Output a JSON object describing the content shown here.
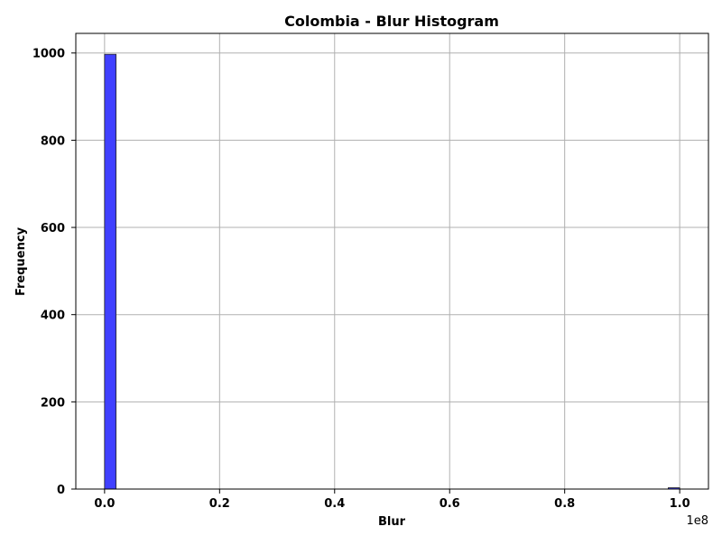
{
  "chart_data": {
    "type": "bar",
    "title": "Colombia - Blur Histogram",
    "xlabel": "Blur",
    "ylabel": "Frequency",
    "x_offset_label": "1e8",
    "xlim": [
      -0.05,
      1.05
    ],
    "ylim": [
      0,
      1045
    ],
    "x_ticks": [
      0.0,
      0.2,
      0.4,
      0.6,
      0.8,
      1.0
    ],
    "x_tick_labels": [
      "0.0",
      "0.2",
      "0.4",
      "0.6",
      "0.8",
      "1.0"
    ],
    "y_ticks": [
      0,
      200,
      400,
      600,
      800,
      1000
    ],
    "y_tick_labels": [
      "0",
      "200",
      "400",
      "600",
      "800",
      "1000"
    ],
    "bin_edges_start": 0.0,
    "bin_edges_end": 1.0,
    "bins": 50,
    "bars": [
      {
        "x_start": 0.0,
        "x_end": 0.02,
        "value": 997
      },
      {
        "x_start": 0.98,
        "x_end": 1.0,
        "value": 3
      }
    ],
    "grid": true,
    "bar_color": "#4040ff",
    "bar_edge_color": "#222222",
    "grid_color": "#b0b0b0"
  }
}
